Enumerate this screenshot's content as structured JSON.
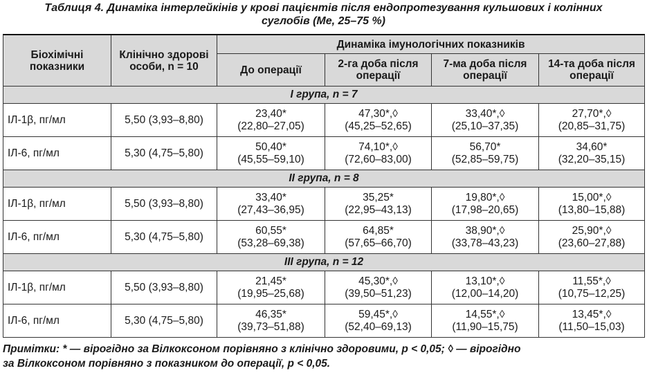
{
  "caption": {
    "line1": "Таблиця 4. Динаміка інтерлейкінів у крові пацієнтів після ендопротезування кульшових і колінних",
    "line2": "суглобів (Me, 25–75 %)"
  },
  "header": {
    "col_indicator": "Біохімічні показники",
    "col_healthy": "Клінічно здорові особи, n = 10",
    "col_dynamics": "Динаміка імунологічних показників",
    "sub": [
      "До операції",
      "2-га доба після операції",
      "7-ма доба після операції",
      "14-та доба після операції"
    ]
  },
  "groups": [
    {
      "title": "I група, n = 7",
      "rows": [
        {
          "name": "ІЛ-1β, пг/мл",
          "healthy": "5,50 (3,93–8,80)",
          "cells": [
            {
              "v": "23,40*",
              "r": "(22,80–27,05)"
            },
            {
              "v": "47,30*,◊",
              "r": "(45,25–52,65)"
            },
            {
              "v": "33,40*,◊",
              "r": "(25,10–37,35)"
            },
            {
              "v": "27,70*,◊",
              "r": "(20,85–31,75)"
            }
          ]
        },
        {
          "name": "ІЛ-6, пг/мл",
          "healthy": "5,30 (4,75–5,80)",
          "cells": [
            {
              "v": "50,40*",
              "r": "(45,55–59,10)"
            },
            {
              "v": "74,10*,◊",
              "r": "(72,60–83,00)"
            },
            {
              "v": "56,70*",
              "r": "(52,85–59,75)"
            },
            {
              "v": "34,60*",
              "r": "(32,20–35,15)"
            }
          ]
        }
      ]
    },
    {
      "title": "II група, n = 8",
      "rows": [
        {
          "name": "ІЛ-1β, пг/мл",
          "healthy": "5,50 (3,93–8,80)",
          "cells": [
            {
              "v": "33,40*",
              "r": "(27,43–36,95)"
            },
            {
              "v": "35,25*",
              "r": "(22,95–43,13)"
            },
            {
              "v": "19,80*,◊",
              "r": "(17,98–20,65)"
            },
            {
              "v": "15,00*,◊",
              "r": "(13,80–15,88)"
            }
          ]
        },
        {
          "name": "ІЛ-6, пг/мл",
          "healthy": "5,30 (4,75–5,80)",
          "cells": [
            {
              "v": "60,55*",
              "r": "(53,28–69,38)"
            },
            {
              "v": "64,85*",
              "r": "(57,65–66,70)"
            },
            {
              "v": "38,90*,◊",
              "r": "(33,78–43,23)"
            },
            {
              "v": "25,90*,◊",
              "r": "(23,60–27,88)"
            }
          ]
        }
      ]
    },
    {
      "title": "III група, n = 12",
      "rows": [
        {
          "name": "ІЛ-1β, пг/мл",
          "healthy": "5,50 (3,93–8,80)",
          "cells": [
            {
              "v": "21,45*",
              "r": "(19,95–25,68)"
            },
            {
              "v": "45,30*,◊",
              "r": "(39,50–51,23)"
            },
            {
              "v": "13,10*,◊",
              "r": "(12,00–14,20)"
            },
            {
              "v": "11,55*,◊",
              "r": "(10,75–12,25)"
            }
          ]
        },
        {
          "name": "ІЛ-6, пг/мл",
          "healthy": "5,30 (4,75–5,80)",
          "cells": [
            {
              "v": "46,35*",
              "r": "(39,73–51,88)"
            },
            {
              "v": "59,45*,◊",
              "r": "(52,40–69,13)"
            },
            {
              "v": "14,55*,◊",
              "r": "(11,90–15,75)"
            },
            {
              "v": "13,45*,◊",
              "r": "(11,50–15,03)"
            }
          ]
        }
      ]
    }
  ],
  "note": {
    "line1": "Примітки: * — вірогідно за Вілкоксоном порівняно з клінічно здоровими, p < 0,05; ◊ — вірогідно",
    "line2": "за Вілкоксоном порівняно з показником до операції, p < 0,05."
  }
}
